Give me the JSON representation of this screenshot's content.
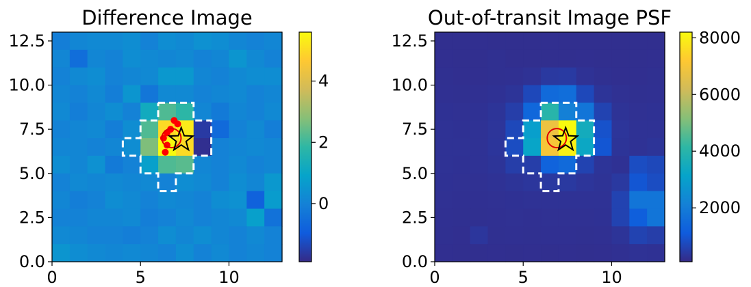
{
  "chart_data": [
    {
      "type": "heatmap",
      "title": "Difference Image",
      "xlim": [
        0,
        13
      ],
      "ylim": [
        0,
        13
      ],
      "x_ticks": [
        "0",
        "5",
        "10"
      ],
      "y_ticks": [
        "0.0",
        "2.5",
        "5.0",
        "7.5",
        "10.0",
        "12.5"
      ],
      "colorbar": {
        "ticks": [
          "0",
          "2",
          "4"
        ],
        "tick_values": [
          0,
          2,
          4
        ],
        "vmin": -1.9,
        "vmax": 5.6
      },
      "colormap": [
        "#352a87",
        "#0f5cdd",
        "#1481d6",
        "#06a4ca",
        "#2eb7a4",
        "#87bf77",
        "#d1bb59",
        "#fec832",
        "#f9fb0e"
      ],
      "grid_rows_top_to_bottom": [
        [
          -0.1,
          0.1,
          0.2,
          0.2,
          0.3,
          0.0,
          0.3,
          0.2,
          0.4,
          0.3,
          0.1,
          0.0,
          0.1
        ],
        [
          0.1,
          -0.5,
          0.1,
          0.0,
          0.3,
          0.2,
          0.1,
          0.2,
          0.0,
          0.1,
          0.5,
          0.2,
          0.0
        ],
        [
          0.0,
          0.2,
          0.3,
          0.0,
          0.1,
          0.2,
          0.6,
          0.6,
          0.1,
          0.0,
          0.2,
          0.3,
          0.3
        ],
        [
          0.1,
          0.0,
          0.2,
          -0.1,
          0.5,
          -0.3,
          0.2,
          0.2,
          0.0,
          0.1,
          0.2,
          0.0,
          0.1
        ],
        [
          0.2,
          -0.1,
          0.1,
          0.3,
          0.0,
          1.2,
          2.2,
          1.8,
          0.1,
          -0.2,
          0.1,
          0.0,
          0.2
        ],
        [
          0.0,
          0.1,
          0.2,
          -0.1,
          0.3,
          2.2,
          5.0,
          5.3,
          -1.6,
          -0.6,
          0.0,
          0.2,
          -0.1
        ],
        [
          0.1,
          0.1,
          0.0,
          0.1,
          0.3,
          2.7,
          5.6,
          5.0,
          -1.8,
          0.0,
          0.1,
          0.2,
          0.1
        ],
        [
          0.3,
          0.1,
          0.4,
          -0.2,
          0.0,
          0.8,
          2.2,
          2.3,
          0.1,
          0.0,
          0.2,
          0.0,
          0.1
        ],
        [
          0.0,
          0.2,
          0.1,
          0.2,
          0.1,
          0.2,
          0.0,
          0.3,
          0.2,
          0.0,
          0.3,
          0.1,
          0.6
        ],
        [
          0.1,
          -0.1,
          0.0,
          0.3,
          0.2,
          0.0,
          0.2,
          0.1,
          0.0,
          0.3,
          0.4,
          -0.8,
          0.7
        ],
        [
          0.0,
          0.0,
          0.1,
          0.1,
          0.2,
          -0.1,
          0.0,
          0.2,
          0.0,
          0.1,
          0.2,
          0.8,
          -0.4
        ],
        [
          0.2,
          0.1,
          0.0,
          0.0,
          -0.1,
          0.0,
          0.3,
          0.1,
          0.3,
          0.1,
          0.0,
          0.2,
          0.0
        ],
        [
          0.5,
          0.3,
          0.2,
          0.1,
          0.2,
          0.1,
          0.0,
          0.3,
          0.0,
          0.2,
          0.0,
          0.1,
          0.0
        ]
      ],
      "aperture_outline": [
        [
          6,
          9
        ],
        [
          8,
          9
        ],
        [
          8,
          8
        ],
        [
          9,
          8
        ],
        [
          9,
          6
        ],
        [
          8,
          6
        ],
        [
          8,
          5
        ],
        [
          7,
          5
        ],
        [
          7,
          4
        ],
        [
          6,
          4
        ],
        [
          6,
          5
        ],
        [
          5,
          5
        ],
        [
          5,
          6
        ],
        [
          4,
          6
        ],
        [
          4,
          7
        ],
        [
          5,
          7
        ],
        [
          5,
          8
        ],
        [
          6,
          8
        ],
        [
          6,
          9
        ]
      ],
      "circle_center": [
        6.75,
        7.0
      ],
      "star_center": [
        7.3,
        6.9
      ],
      "red_points": [
        [
          6.9,
          8.0
        ],
        [
          7.1,
          7.8
        ],
        [
          6.7,
          7.5
        ],
        [
          6.5,
          7.3
        ],
        [
          6.3,
          7.0
        ],
        [
          6.5,
          6.6
        ],
        [
          6.4,
          6.2
        ]
      ]
    },
    {
      "type": "heatmap",
      "title": "Out-of-transit Image PSF",
      "xlim": [
        0,
        13
      ],
      "ylim": [
        0,
        13
      ],
      "x_ticks": [
        "0",
        "5",
        "10"
      ],
      "y_ticks": [
        "0.0",
        "2.5",
        "5.0",
        "7.5",
        "10.0",
        "12.5"
      ],
      "colorbar": {
        "ticks": [
          "2000",
          "4000",
          "6000",
          "8000"
        ],
        "tick_values": [
          2000,
          4000,
          6000,
          8000
        ],
        "vmin": 100,
        "vmax": 8200
      },
      "colormap": [
        "#352a87",
        "#0f5cdd",
        "#1481d6",
        "#06a4ca",
        "#2eb7a4",
        "#87bf77",
        "#d1bb59",
        "#fec832",
        "#f9fb0e"
      ],
      "grid_rows_top_to_bottom": [
        [
          200,
          200,
          210,
          200,
          200,
          200,
          210,
          200,
          200,
          200,
          200,
          200,
          200
        ],
        [
          210,
          200,
          200,
          220,
          200,
          200,
          200,
          200,
          210,
          200,
          200,
          200,
          210
        ],
        [
          220,
          210,
          210,
          220,
          230,
          270,
          400,
          420,
          270,
          220,
          210,
          210,
          220
        ],
        [
          230,
          220,
          230,
          250,
          300,
          700,
          1500,
          1600,
          700,
          300,
          240,
          220,
          230
        ],
        [
          250,
          240,
          250,
          300,
          500,
          1400,
          4000,
          2100,
          1800,
          600,
          280,
          240,
          250
        ],
        [
          260,
          250,
          260,
          320,
          700,
          3000,
          6800,
          8200,
          3500,
          900,
          320,
          260,
          270
        ],
        [
          270,
          260,
          270,
          330,
          800,
          3200,
          7000,
          8000,
          3300,
          1000,
          300,
          270,
          300
        ],
        [
          270,
          250,
          260,
          300,
          500,
          500,
          1300,
          1500,
          600,
          300,
          250,
          800,
          700
        ],
        [
          250,
          240,
          240,
          260,
          300,
          350,
          400,
          400,
          320,
          280,
          400,
          1000,
          800
        ],
        [
          240,
          230,
          230,
          240,
          250,
          260,
          270,
          270,
          260,
          260,
          600,
          1800,
          1800
        ],
        [
          230,
          220,
          220,
          230,
          240,
          230,
          240,
          240,
          240,
          250,
          600,
          1200,
          1800
        ],
        [
          220,
          210,
          350,
          220,
          230,
          220,
          230,
          230,
          220,
          230,
          300,
          600,
          500
        ],
        [
          210,
          200,
          200,
          210,
          200,
          210,
          200,
          210,
          200,
          210,
          230,
          260,
          250
        ]
      ],
      "aperture_outline": [
        [
          6,
          9
        ],
        [
          8,
          9
        ],
        [
          8,
          8
        ],
        [
          9,
          8
        ],
        [
          9,
          6
        ],
        [
          8,
          6
        ],
        [
          8,
          5
        ],
        [
          7,
          5
        ],
        [
          7,
          4
        ],
        [
          6,
          4
        ],
        [
          6,
          5
        ],
        [
          5,
          5
        ],
        [
          5,
          6
        ],
        [
          4,
          6
        ],
        [
          4,
          7
        ],
        [
          5,
          7
        ],
        [
          5,
          8
        ],
        [
          6,
          8
        ],
        [
          6,
          9
        ]
      ],
      "circle_center": [
        6.9,
        7.0
      ],
      "star_center": [
        7.4,
        6.9
      ],
      "red_points": []
    }
  ]
}
